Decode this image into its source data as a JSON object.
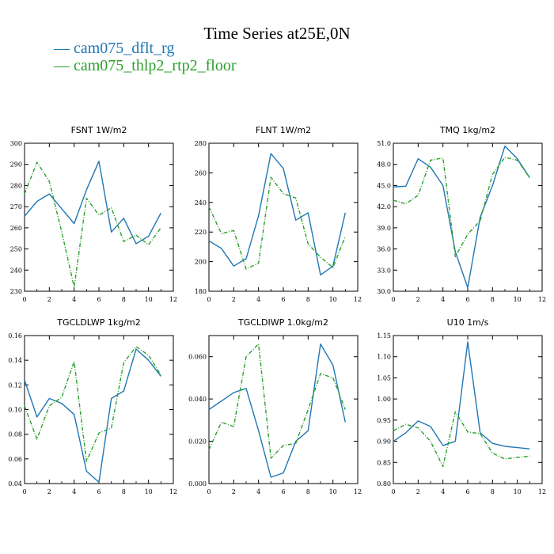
{
  "figure": {
    "title": "Time Series at25E,0N",
    "legend": [
      {
        "label": "cam075_dflt_rg",
        "color": "#1f77b4"
      },
      {
        "label": "cam075_thlp2_rtp2_floor",
        "color": "#2ca02c"
      }
    ]
  },
  "chart_data": [
    {
      "type": "line",
      "title": "FSNT   1W/m2",
      "xlim": [
        0,
        12
      ],
      "xticks": [
        0,
        2,
        4,
        6,
        8,
        10,
        12
      ],
      "ylim": [
        230,
        300
      ],
      "yticks": [
        230,
        240,
        250,
        260,
        270,
        280,
        290,
        300
      ],
      "ydec": 0,
      "x": [
        0,
        1,
        2,
        3,
        4,
        5,
        6,
        7,
        8,
        9,
        10,
        11
      ],
      "series": [
        {
          "name": "cam075_dflt_rg",
          "values": [
            265.5,
            272.5,
            276,
            269,
            262,
            278,
            291.5,
            258,
            264.5,
            252.5,
            256,
            267
          ]
        },
        {
          "name": "cam075_thlp2_rtp2_floor",
          "values": [
            276,
            291,
            282,
            258,
            232,
            274,
            266,
            269.5,
            253.5,
            256.5,
            252,
            260
          ]
        }
      ]
    },
    {
      "type": "line",
      "title": "FLNT   1W/m2",
      "xlim": [
        0,
        12
      ],
      "xticks": [
        0,
        2,
        4,
        6,
        8,
        10,
        12
      ],
      "ylim": [
        180,
        280
      ],
      "yticks": [
        180,
        200,
        220,
        240,
        260,
        280
      ],
      "ydec": 0,
      "x": [
        0,
        1,
        2,
        3,
        4,
        5,
        6,
        7,
        8,
        9,
        10,
        11
      ],
      "series": [
        {
          "name": "cam075_dflt_rg",
          "values": [
            214,
            209,
            197,
            202,
            231,
            273,
            263,
            228,
            233,
            191,
            197,
            233
          ]
        },
        {
          "name": "cam075_thlp2_rtp2_floor",
          "values": [
            237,
            219,
            221,
            195,
            199,
            257,
            246,
            243,
            212,
            203,
            196,
            217
          ]
        }
      ]
    },
    {
      "type": "line",
      "title": "TMQ   1kg/m2",
      "xlim": [
        0,
        12
      ],
      "xticks": [
        0,
        2,
        4,
        6,
        8,
        10,
        12
      ],
      "ylim": [
        30,
        51
      ],
      "yticks": [
        30,
        33,
        36,
        39,
        42,
        45,
        48,
        51
      ],
      "ydec": 1,
      "x": [
        0,
        1,
        2,
        3,
        4,
        5,
        6,
        7,
        8,
        9,
        10,
        11
      ],
      "series": [
        {
          "name": "cam075_dflt_rg",
          "values": [
            44.8,
            44.9,
            48.8,
            47.6,
            45,
            35.6,
            30.5,
            40.5,
            45,
            50.6,
            48.8,
            46.1
          ]
        },
        {
          "name": "cam075_thlp2_rtp2_floor",
          "values": [
            42.9,
            42.4,
            43.6,
            48.6,
            48.9,
            34.9,
            38.1,
            40,
            46.6,
            49,
            48.6,
            46.1
          ]
        }
      ]
    },
    {
      "type": "line",
      "title": "TGCLDLWP   1kg/m2",
      "xlim": [
        0,
        12
      ],
      "xticks": [
        0,
        2,
        4,
        6,
        8,
        10,
        12
      ],
      "ylim": [
        0.04,
        0.16
      ],
      "yticks": [
        0.04,
        0.06,
        0.08,
        0.1,
        0.12,
        0.14,
        0.16
      ],
      "ydec": 2,
      "x": [
        0,
        1,
        2,
        3,
        4,
        5,
        6,
        7,
        8,
        9,
        10,
        11
      ],
      "series": [
        {
          "name": "cam075_dflt_rg",
          "values": [
            0.124,
            0.094,
            0.109,
            0.105,
            0.096,
            0.05,
            0.041,
            0.109,
            0.115,
            0.149,
            0.14,
            0.127
          ]
        },
        {
          "name": "cam075_thlp2_rtp2_floor",
          "values": [
            0.103,
            0.076,
            0.103,
            0.11,
            0.139,
            0.058,
            0.081,
            0.085,
            0.138,
            0.151,
            0.144,
            0.128
          ]
        }
      ]
    },
    {
      "type": "line",
      "title": "TGCLDIWP   1.0kg/m2",
      "xlim": [
        0,
        12
      ],
      "xticks": [
        0,
        2,
        4,
        6,
        8,
        10,
        12
      ],
      "ylim": [
        0,
        0.07
      ],
      "yticks": [
        0,
        0.02,
        0.04,
        0.06
      ],
      "ydec": 3,
      "x": [
        0,
        1,
        2,
        3,
        4,
        5,
        6,
        7,
        8,
        9,
        10,
        11
      ],
      "series": [
        {
          "name": "cam075_dflt_rg",
          "values": [
            0.035,
            0.039,
            0.043,
            0.045,
            0.025,
            0.003,
            0.005,
            0.02,
            0.025,
            0.066,
            0.056,
            0.029
          ]
        },
        {
          "name": "cam075_thlp2_rtp2_floor",
          "values": [
            0.016,
            0.029,
            0.027,
            0.06,
            0.066,
            0.012,
            0.018,
            0.019,
            0.035,
            0.052,
            0.05,
            0.035
          ]
        }
      ]
    },
    {
      "type": "line",
      "title": "U10   1m/s",
      "xlim": [
        0,
        12
      ],
      "xticks": [
        0,
        2,
        4,
        6,
        8,
        10,
        12
      ],
      "ylim": [
        0.8,
        1.15
      ],
      "yticks": [
        0.8,
        0.85,
        0.9,
        0.95,
        1,
        1.05,
        1.1,
        1.15
      ],
      "ydec": 2,
      "x": [
        0,
        1,
        2,
        3,
        4,
        5,
        6,
        7,
        8,
        9,
        10,
        11
      ],
      "series": [
        {
          "name": "cam075_dflt_rg",
          "values": [
            0.9,
            0.92,
            0.948,
            0.935,
            0.89,
            0.9,
            1.135,
            0.92,
            0.895,
            0.888,
            0.885,
            0.882
          ]
        },
        {
          "name": "cam075_thlp2_rtp2_floor",
          "values": [
            0.925,
            0.94,
            0.932,
            0.9,
            0.84,
            0.97,
            0.922,
            0.918,
            0.872,
            0.858,
            0.862,
            0.865
          ]
        }
      ]
    }
  ]
}
